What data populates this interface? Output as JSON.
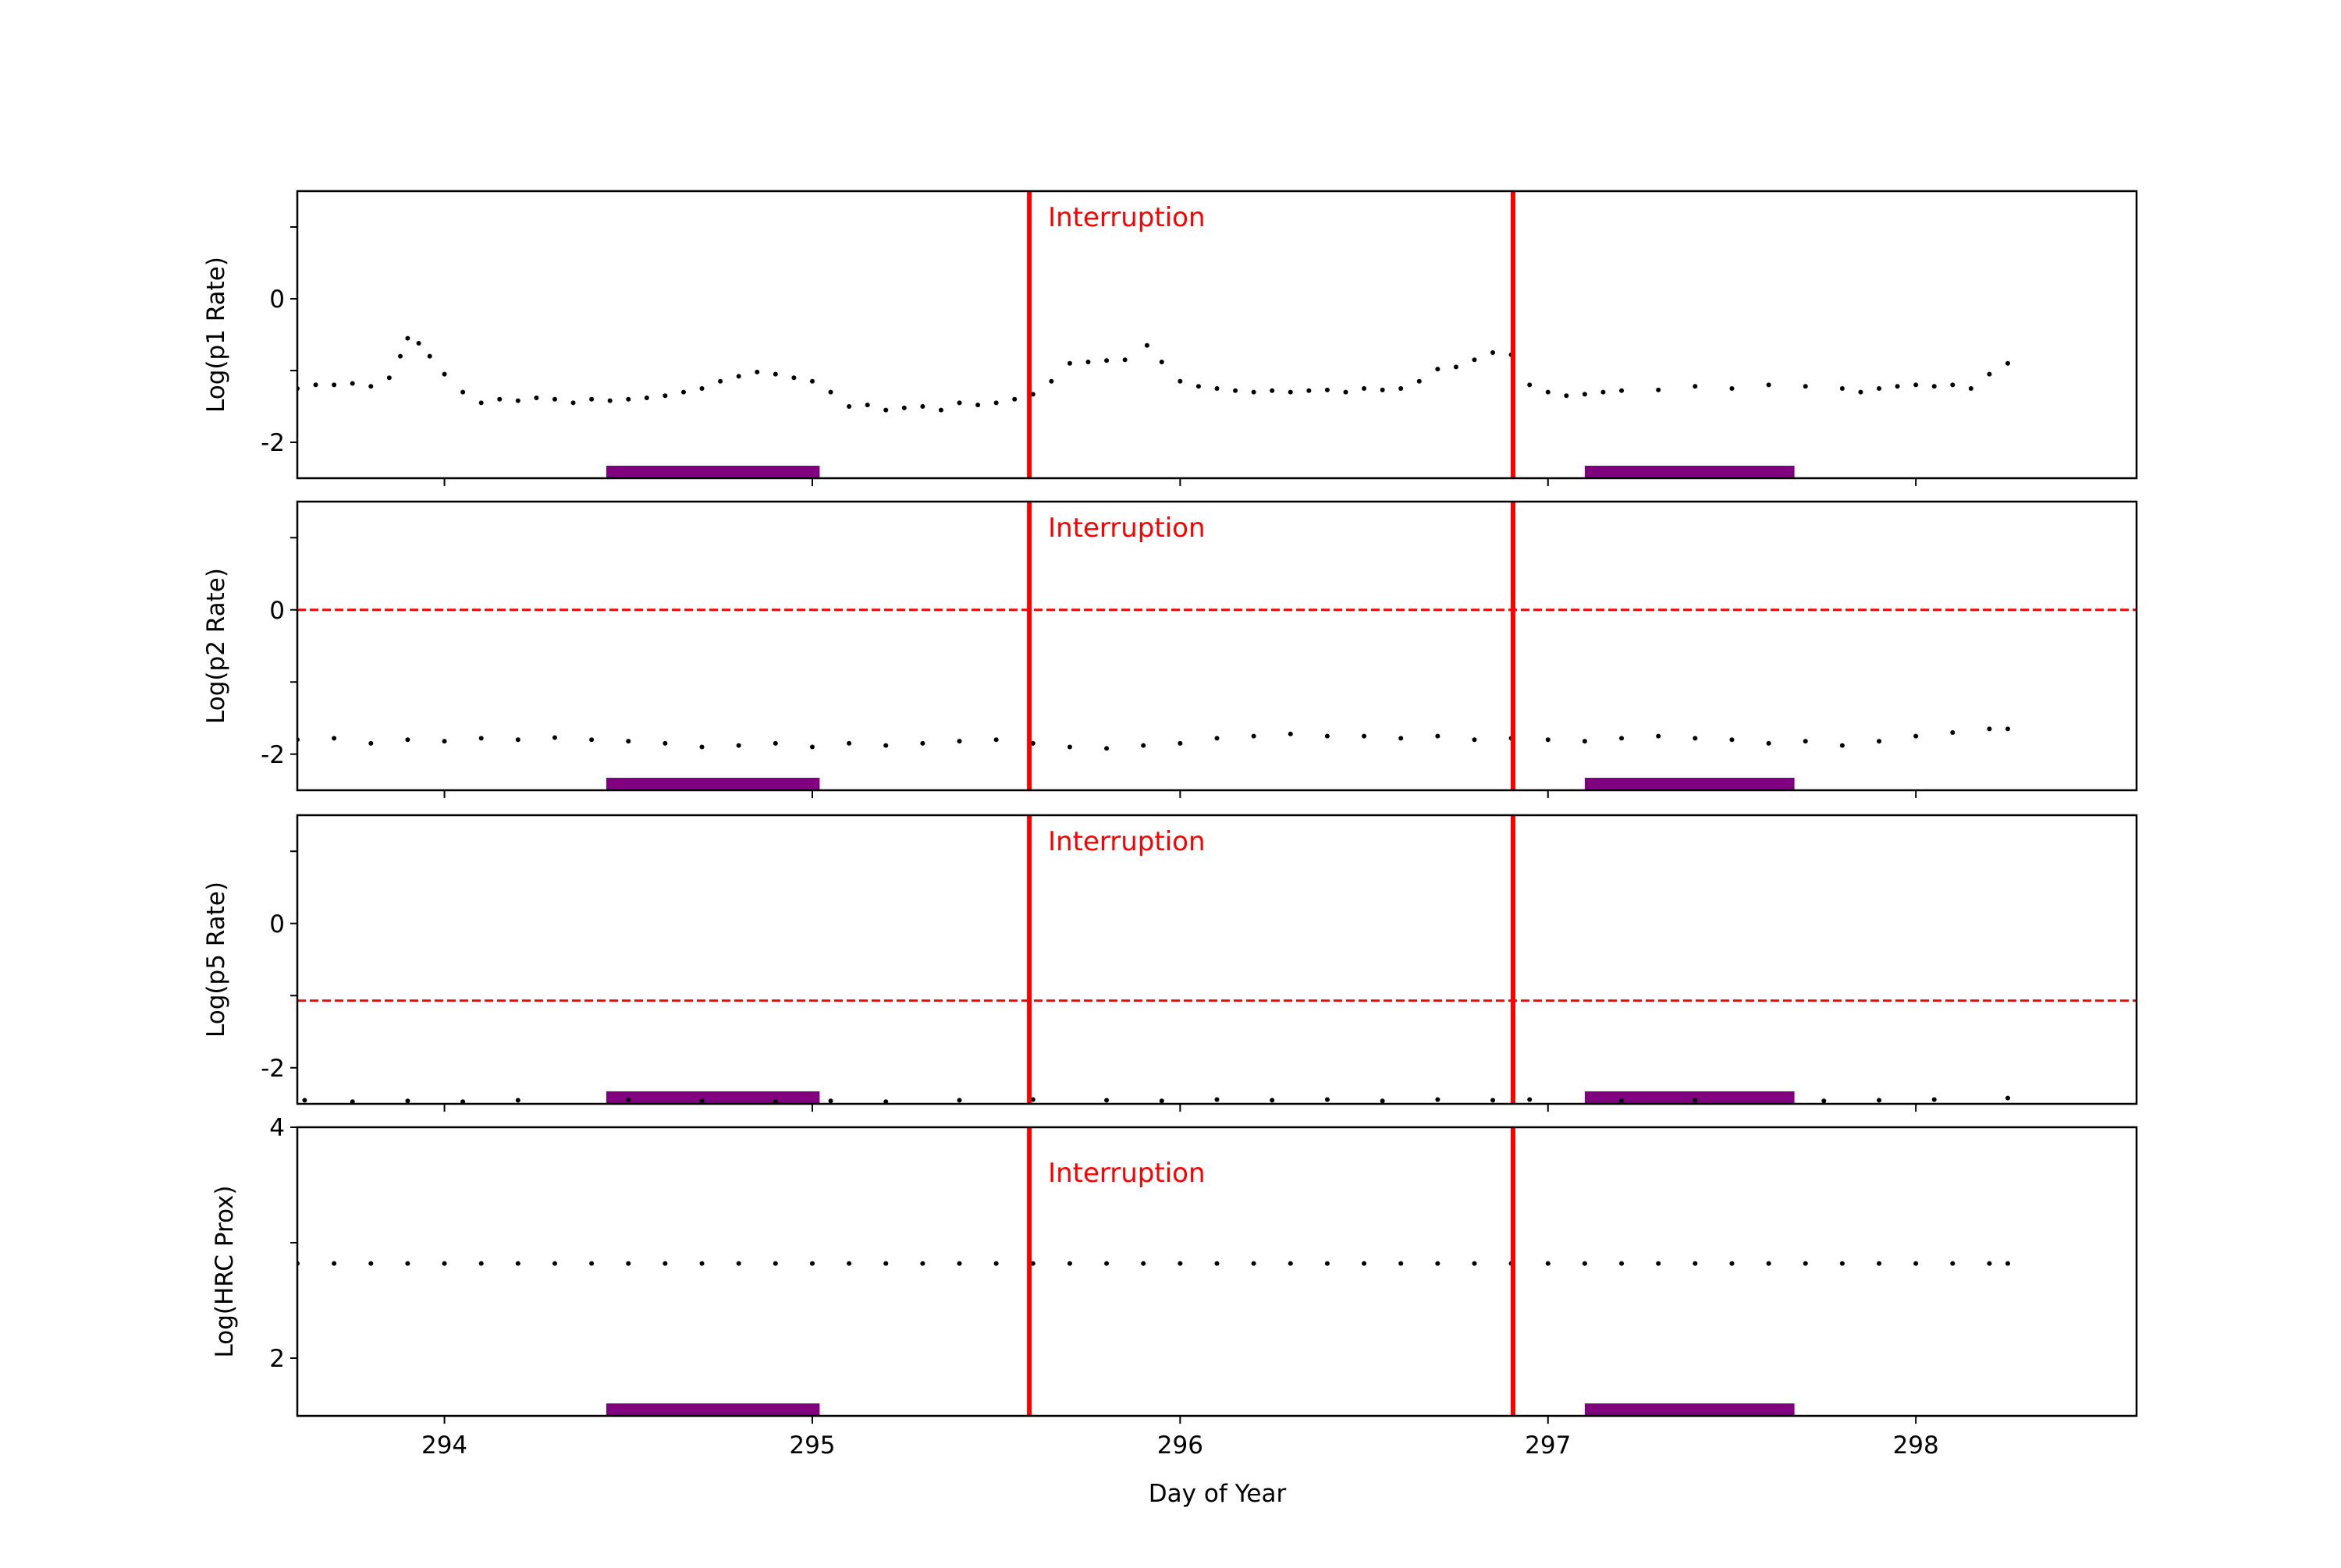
{
  "chart_data": {
    "type": "scatter",
    "xlabel": "Day of Year",
    "xlim": [
      293.6,
      298.6
    ],
    "xticks": [
      294,
      295,
      296,
      297,
      298
    ],
    "interruption_lines": [
      295.59,
      296.905
    ],
    "annotation": "Interruption",
    "interruption_color": "#ff0000",
    "shaded_periods": [
      [
        294.44,
        295.02
      ],
      [
        297.1,
        297.67
      ]
    ],
    "shaded_color": "#800080",
    "point_color": "#000000",
    "panels": [
      {
        "ylabel": "Log(p1 Rate)",
        "ylim": [
          -2.5,
          1.5
        ],
        "yticks": [
          0,
          -2
        ],
        "yticklabels": [
          "0",
          "-2"
        ],
        "minor_yticks": [
          1,
          -1
        ],
        "threshold": null,
        "points": {
          "x": [
            293.6,
            293.65,
            293.7,
            293.75,
            293.8,
            293.85,
            293.88,
            293.9,
            293.93,
            293.96,
            294.0,
            294.05,
            294.1,
            294.15,
            294.2,
            294.25,
            294.3,
            294.35,
            294.4,
            294.45,
            294.5,
            294.55,
            294.6,
            294.65,
            294.7,
            294.75,
            294.8,
            294.85,
            294.9,
            294.95,
            295.0,
            295.05,
            295.1,
            295.15,
            295.2,
            295.25,
            295.3,
            295.35,
            295.4,
            295.45,
            295.5,
            295.55,
            295.6,
            295.65,
            295.7,
            295.75,
            295.8,
            295.85,
            295.91,
            295.95,
            296.0,
            296.05,
            296.1,
            296.15,
            296.2,
            296.25,
            296.3,
            296.35,
            296.4,
            296.45,
            296.5,
            296.55,
            296.6,
            296.65,
            296.7,
            296.75,
            296.8,
            296.85,
            296.9,
            296.95,
            297.0,
            297.05,
            297.1,
            297.15,
            297.2,
            297.3,
            297.4,
            297.5,
            297.6,
            297.7,
            297.8,
            297.85,
            297.9,
            297.95,
            298.0,
            298.05,
            298.1,
            298.15,
            298.2,
            298.25
          ],
          "y": [
            -1.25,
            -1.2,
            -1.2,
            -1.18,
            -1.22,
            -1.1,
            -0.8,
            -0.55,
            -0.62,
            -0.8,
            -1.05,
            -1.3,
            -1.45,
            -1.4,
            -1.42,
            -1.38,
            -1.4,
            -1.45,
            -1.4,
            -1.42,
            -1.4,
            -1.38,
            -1.35,
            -1.3,
            -1.25,
            -1.15,
            -1.08,
            -1.02,
            -1.05,
            -1.1,
            -1.15,
            -1.3,
            -1.5,
            -1.48,
            -1.55,
            -1.52,
            -1.5,
            -1.55,
            -1.45,
            -1.48,
            -1.45,
            -1.4,
            -1.33,
            -1.15,
            -0.9,
            -0.88,
            -0.86,
            -0.85,
            -0.65,
            -0.88,
            -1.15,
            -1.22,
            -1.25,
            -1.28,
            -1.3,
            -1.28,
            -1.3,
            -1.28,
            -1.27,
            -1.3,
            -1.25,
            -1.27,
            -1.25,
            -1.15,
            -0.98,
            -0.95,
            -0.85,
            -0.75,
            -0.78,
            -1.2,
            -1.3,
            -1.35,
            -1.33,
            -1.3,
            -1.28,
            -1.27,
            -1.22,
            -1.25,
            -1.2,
            -1.22,
            -1.25,
            -1.3,
            -1.25,
            -1.22,
            -1.2,
            -1.22,
            -1.2,
            -1.25,
            -1.05,
            -0.9
          ]
        }
      },
      {
        "ylabel": "Log(p2 Rate)",
        "ylim": [
          -2.5,
          1.5
        ],
        "yticks": [
          0,
          -2
        ],
        "yticklabels": [
          "0",
          "-2"
        ],
        "minor_yticks": [
          1,
          -1
        ],
        "threshold": 0,
        "points": {
          "x": [
            293.6,
            293.7,
            293.8,
            293.9,
            294.0,
            294.1,
            294.2,
            294.3,
            294.4,
            294.5,
            294.6,
            294.7,
            294.8,
            294.9,
            295.0,
            295.1,
            295.2,
            295.3,
            295.4,
            295.5,
            295.6,
            295.7,
            295.8,
            295.9,
            296.0,
            296.1,
            296.2,
            296.3,
            296.4,
            296.5,
            296.6,
            296.7,
            296.8,
            296.9,
            297.0,
            297.1,
            297.2,
            297.3,
            297.4,
            297.5,
            297.6,
            297.7,
            297.8,
            297.9,
            298.0,
            298.1,
            298.2,
            298.25
          ],
          "y": [
            -1.8,
            -1.78,
            -1.85,
            -1.8,
            -1.82,
            -1.78,
            -1.8,
            -1.77,
            -1.8,
            -1.82,
            -1.85,
            -1.9,
            -1.88,
            -1.85,
            -1.9,
            -1.85,
            -1.88,
            -1.85,
            -1.82,
            -1.8,
            -1.85,
            -1.9,
            -1.92,
            -1.88,
            -1.85,
            -1.78,
            -1.75,
            -1.72,
            -1.75,
            -1.75,
            -1.78,
            -1.75,
            -1.8,
            -1.78,
            -1.8,
            -1.82,
            -1.78,
            -1.75,
            -1.78,
            -1.8,
            -1.85,
            -1.82,
            -1.88,
            -1.82,
            -1.75,
            -1.7,
            -1.65,
            -1.65
          ]
        }
      },
      {
        "ylabel": "Log(p5 Rate)",
        "ylim": [
          -2.5,
          1.5
        ],
        "yticks": [
          0,
          -2
        ],
        "yticklabels": [
          "0",
          "-2"
        ],
        "minor_yticks": [
          1,
          -1
        ],
        "threshold": -1.07,
        "points": {
          "x": [
            293.62,
            293.75,
            293.9,
            294.05,
            294.2,
            294.5,
            294.7,
            294.9,
            295.05,
            295.2,
            295.4,
            295.6,
            295.8,
            295.95,
            296.1,
            296.25,
            296.4,
            296.55,
            296.7,
            296.85,
            296.95,
            297.2,
            297.4,
            297.75,
            297.9,
            298.05,
            298.25
          ],
          "y": [
            -2.45,
            -2.47,
            -2.46,
            -2.47,
            -2.45,
            -2.44,
            -2.46,
            -2.47,
            -2.46,
            -2.47,
            -2.45,
            -2.44,
            -2.45,
            -2.46,
            -2.44,
            -2.45,
            -2.44,
            -2.46,
            -2.44,
            -2.45,
            -2.44,
            -2.46,
            -2.45,
            -2.46,
            -2.45,
            -2.44,
            -2.42
          ]
        }
      },
      {
        "ylabel": "Log(HRC Prox)",
        "ylim": [
          1.5,
          4
        ],
        "yticks": [
          4,
          2
        ],
        "yticklabels": [
          "4",
          "2"
        ],
        "minor_yticks": [
          3
        ],
        "threshold": null,
        "points": {
          "x": [
            293.6,
            293.7,
            293.8,
            293.9,
            294.0,
            294.1,
            294.2,
            294.3,
            294.4,
            294.5,
            294.6,
            294.7,
            294.8,
            294.9,
            295.0,
            295.1,
            295.2,
            295.3,
            295.4,
            295.5,
            295.6,
            295.7,
            295.8,
            295.9,
            296.0,
            296.1,
            296.2,
            296.3,
            296.4,
            296.5,
            296.6,
            296.7,
            296.8,
            296.9,
            297.0,
            297.1,
            297.2,
            297.3,
            297.4,
            297.5,
            297.6,
            297.7,
            297.8,
            297.9,
            298.0,
            298.1,
            298.2,
            298.25
          ],
          "y": [
            2.82,
            2.82,
            2.82,
            2.82,
            2.82,
            2.82,
            2.82,
            2.82,
            2.82,
            2.82,
            2.82,
            2.82,
            2.82,
            2.82,
            2.82,
            2.82,
            2.82,
            2.82,
            2.82,
            2.82,
            2.82,
            2.82,
            2.82,
            2.82,
            2.82,
            2.82,
            2.82,
            2.82,
            2.82,
            2.82,
            2.82,
            2.82,
            2.82,
            2.82,
            2.82,
            2.82,
            2.82,
            2.82,
            2.82,
            2.82,
            2.82,
            2.82,
            2.82,
            2.82,
            2.82,
            2.82,
            2.82,
            2.82
          ]
        }
      }
    ]
  }
}
